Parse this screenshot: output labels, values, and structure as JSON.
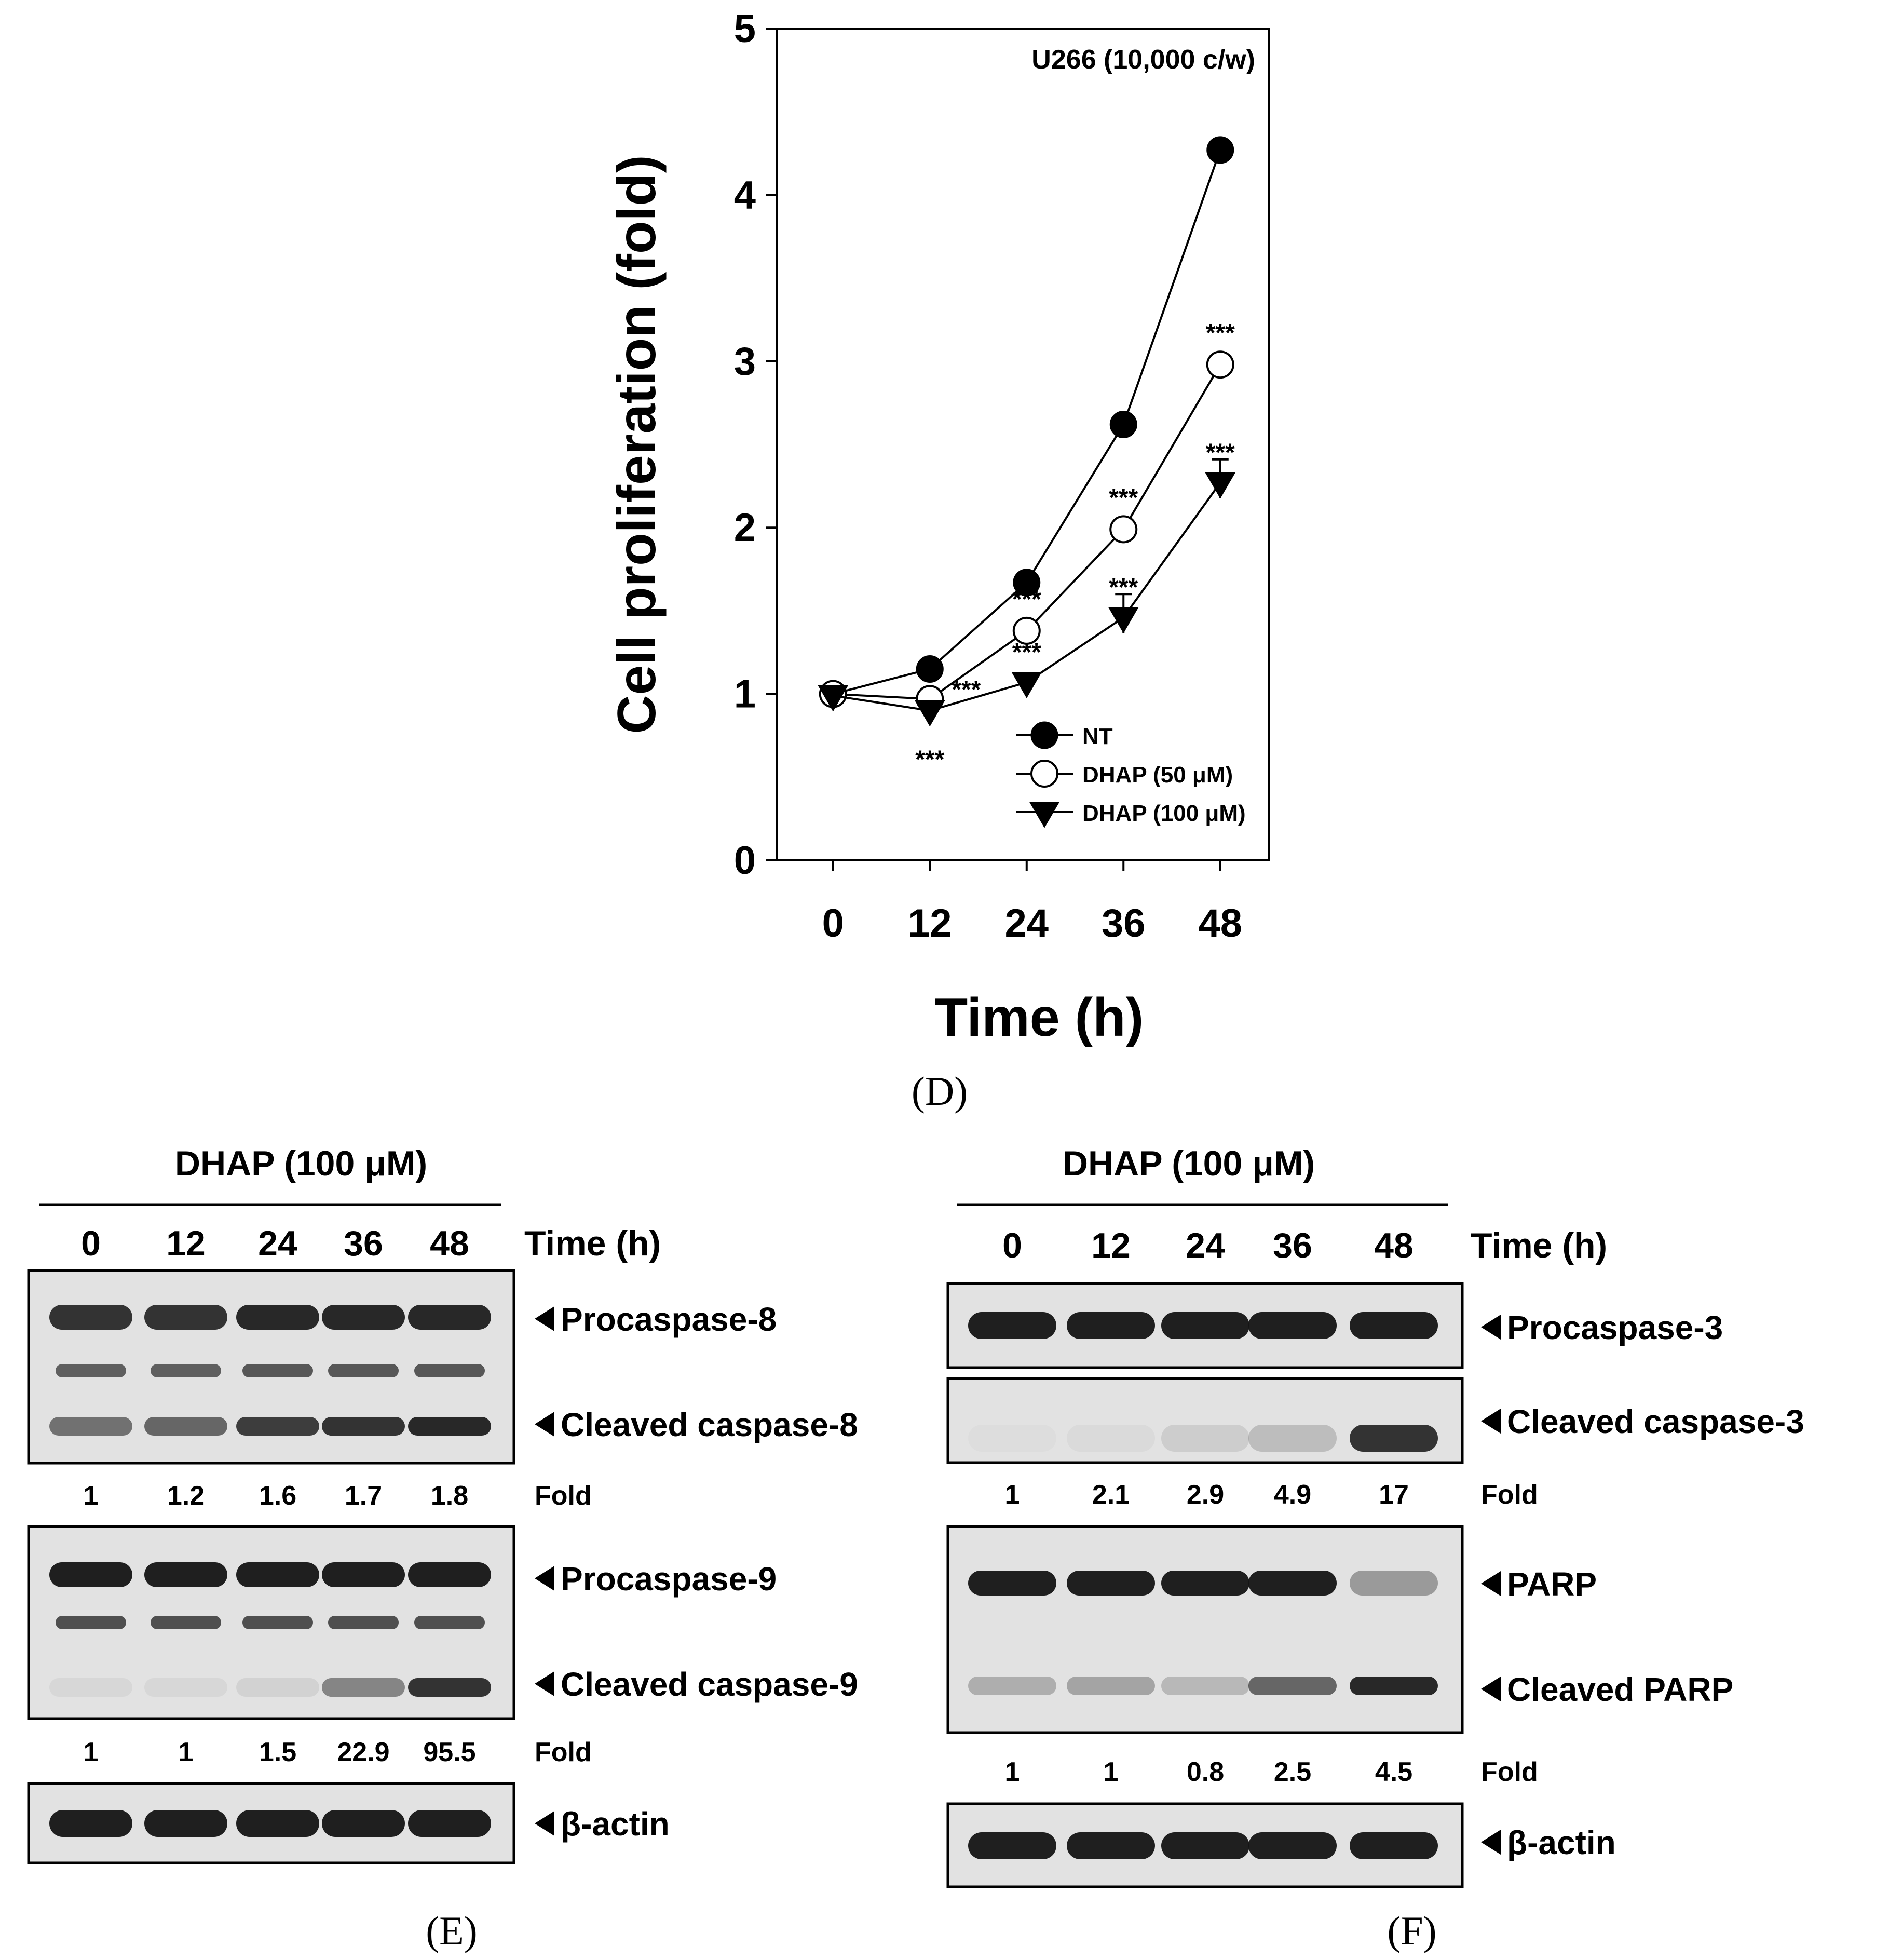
{
  "colors": {
    "ink": "#000000",
    "blot_bg": "#e4e4e4",
    "band": "#141414"
  },
  "chart_data": {
    "type": "line",
    "panel_label": "D",
    "annotation": "U266 (10,000 c/w)",
    "xlabel": "Time (h)",
    "ylabel": "Cell proliferation (fold)",
    "x": [
      0,
      12,
      24,
      36,
      48
    ],
    "xticks": [
      "0",
      "12",
      "24",
      "36",
      "48"
    ],
    "yticks": [
      "0",
      "1",
      "2",
      "3",
      "4",
      "5"
    ],
    "ylim": [
      0,
      5
    ],
    "xlim": [
      -7,
      54
    ],
    "grid": false,
    "legend_position": "bottom-right",
    "series": [
      {
        "name": "NT",
        "marker": "filled-circle",
        "values": [
          1.0,
          1.15,
          1.67,
          2.62,
          4.27
        ],
        "stars": [
          "",
          "",
          "",
          "",
          ""
        ]
      },
      {
        "name": "DHAP (50 μM)",
        "marker": "open-circle",
        "values": [
          1.0,
          0.97,
          1.38,
          1.99,
          2.98
        ],
        "stars": [
          "",
          "***",
          "***",
          "***",
          "***"
        ]
      },
      {
        "name": "DHAP (100 μM)",
        "marker": "filled-triangle-down",
        "values": [
          0.99,
          0.9,
          1.07,
          1.46,
          2.27
        ],
        "stars": [
          "",
          "***",
          "***",
          "***",
          "***"
        ]
      }
    ]
  },
  "blots": {
    "E": {
      "panel_label": "E",
      "treatment": "DHAP (100 μM)",
      "time_label": "Time (h)",
      "times": [
        "0",
        "12",
        "24",
        "36",
        "48"
      ],
      "fold_label": "Fold",
      "blocks": [
        {
          "labels": [
            "Procaspase-8",
            "Cleaved caspase-8"
          ],
          "fold": [
            "1",
            "1.2",
            "1.6",
            "1.7",
            "1.8"
          ],
          "procaspase_intensity": [
            0.85,
            0.85,
            0.9,
            0.9,
            0.9
          ],
          "cleaved_intensity": [
            0.55,
            0.6,
            0.8,
            0.85,
            0.9
          ]
        },
        {
          "labels": [
            "Procaspase-9",
            "Cleaved caspase-9"
          ],
          "fold": [
            "1",
            "1",
            "1.5",
            "22.9",
            "95.5"
          ],
          "procaspase_intensity": [
            0.95,
            0.95,
            0.95,
            0.95,
            0.95
          ],
          "cleaved_intensity": [
            0.05,
            0.05,
            0.08,
            0.45,
            0.85
          ]
        },
        {
          "labels": [
            "β-actin"
          ],
          "fold": [],
          "band_intensity": [
            0.95,
            0.95,
            0.95,
            0.95,
            0.95
          ]
        }
      ]
    },
    "F": {
      "panel_label": "F",
      "treatment": "DHAP (100 μM)",
      "time_label": "Time (h)",
      "times": [
        "0",
        "12",
        "24",
        "36",
        "48"
      ],
      "fold_label": "Fold",
      "blocks": [
        {
          "labels": [
            "Procaspase-3"
          ],
          "fold": [],
          "band_intensity": [
            0.95,
            0.95,
            0.95,
            0.95,
            0.95
          ]
        },
        {
          "labels": [
            "Cleaved caspase-3"
          ],
          "fold": [
            "1",
            "2.1",
            "2.9",
            "4.9",
            "17"
          ],
          "band_intensity": [
            0.02,
            0.04,
            0.1,
            0.18,
            0.85
          ]
        },
        {
          "labels": [
            "PARP",
            "Cleaved PARP"
          ],
          "fold": [
            "1",
            "1",
            "0.8",
            "2.5",
            "4.5"
          ],
          "procaspase_intensity": [
            0.95,
            0.95,
            0.95,
            0.95,
            0.35
          ],
          "cleaved_intensity": [
            0.25,
            0.3,
            0.2,
            0.6,
            0.9
          ]
        },
        {
          "labels": [
            "β-actin"
          ],
          "fold": [],
          "band_intensity": [
            0.95,
            0.95,
            0.95,
            0.95,
            0.95
          ]
        }
      ]
    }
  }
}
